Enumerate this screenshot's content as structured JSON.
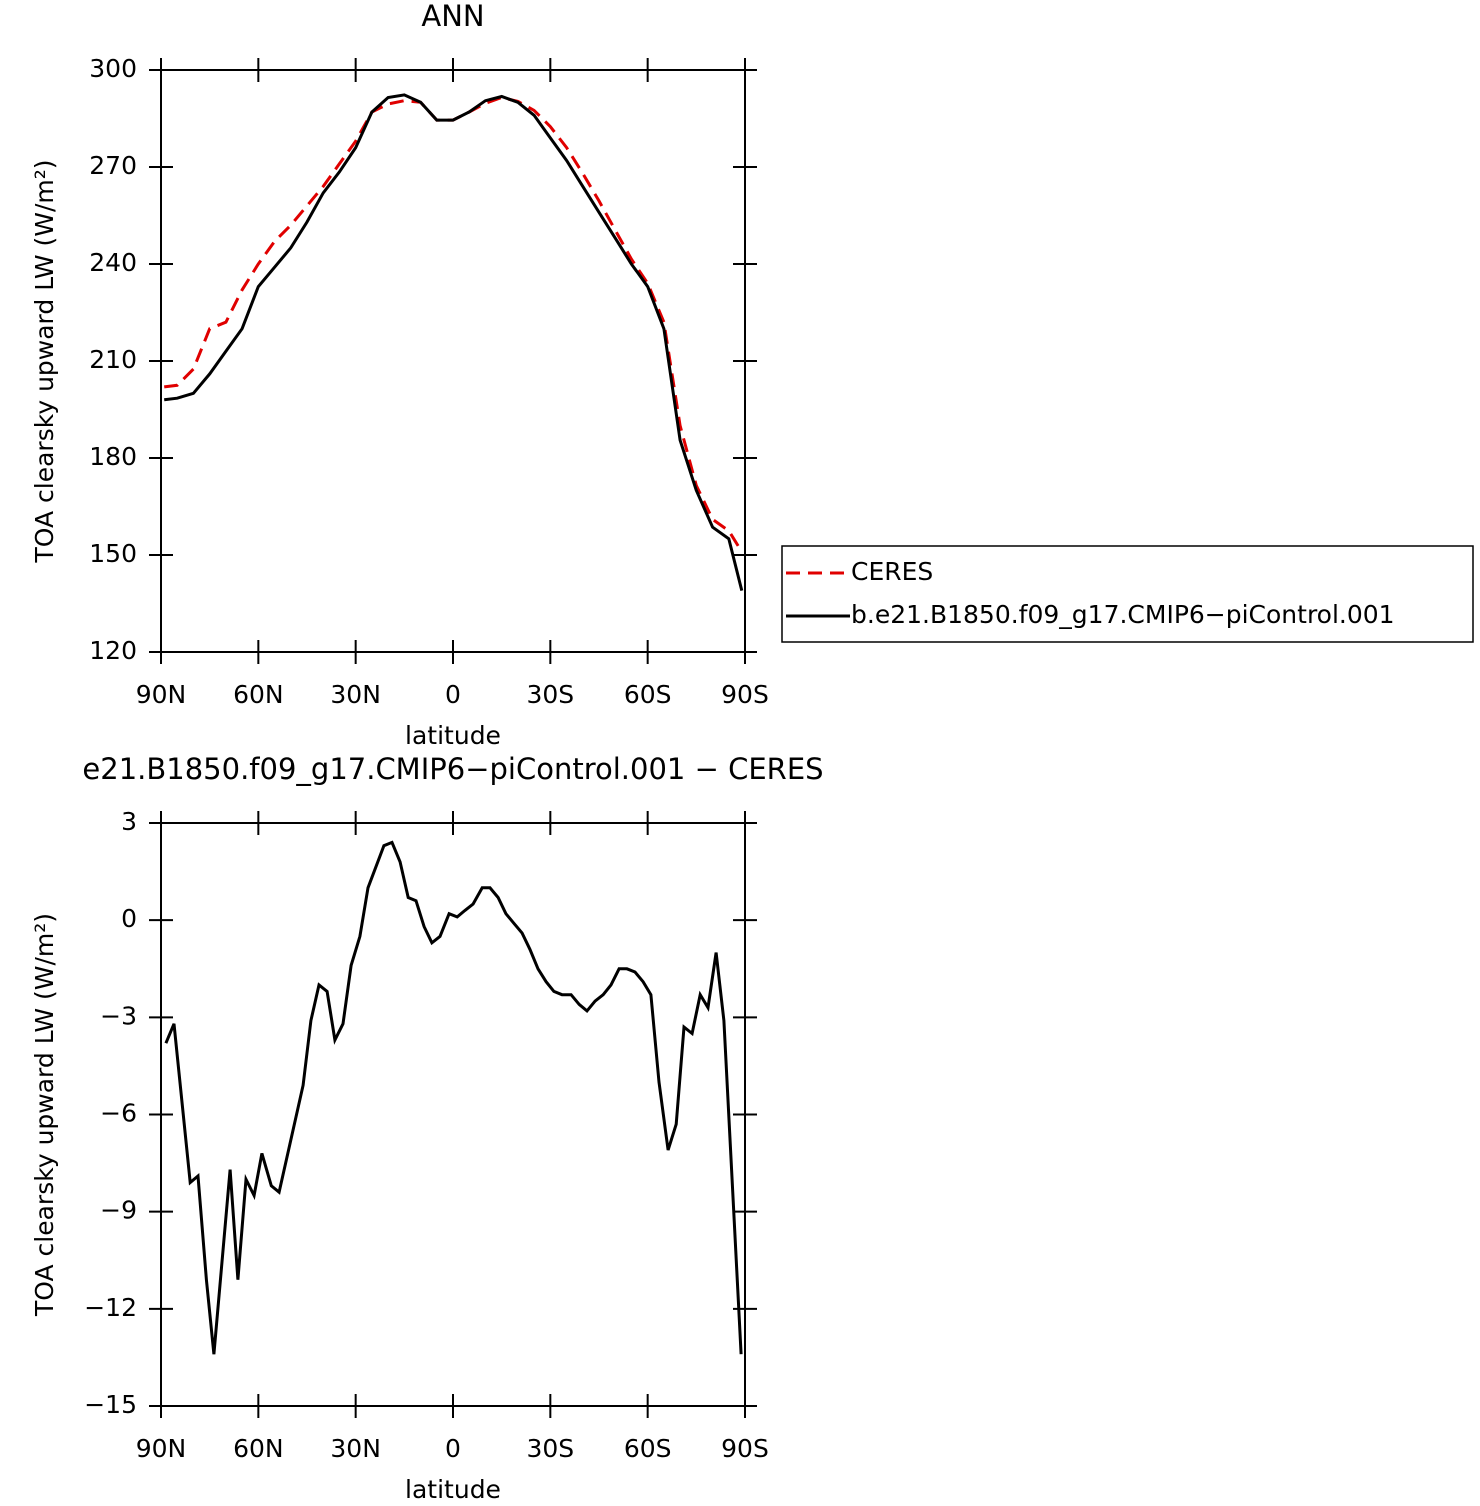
{
  "chart_data": [
    {
      "type": "line",
      "title": "ANN",
      "x_label": "latitude",
      "y_label": "TOA clearsky upward LW (W/m²)",
      "x": [
        89,
        85,
        80,
        75,
        70,
        65,
        60,
        55,
        50,
        45,
        40,
        35,
        30,
        25,
        20,
        15,
        10,
        5,
        0,
        -5,
        -10,
        -15,
        -20,
        -25,
        -30,
        -35,
        -40,
        -45,
        -50,
        -55,
        -60,
        -65,
        -70,
        -75,
        -80,
        -85,
        -89
      ],
      "series": [
        {
          "name": "CERES",
          "color": "#e00000",
          "line_style": "dashed",
          "values": [
            202,
            202.5,
            207.5,
            220,
            222,
            232,
            240,
            247,
            252,
            258,
            264,
            271,
            278,
            287,
            289.5,
            290.5,
            290,
            284.5,
            284.5,
            287,
            289.7,
            291.5,
            290.3,
            287.5,
            282.5,
            276,
            268,
            259.5,
            250.5,
            241.5,
            234,
            222,
            190,
            171.5,
            161,
            157.5,
            151
          ]
        },
        {
          "name": "b.e21.B1850.f09_g17.CMIP6−piControl.001",
          "color": "#000000",
          "line_style": "solid",
          "values": [
            198,
            198.5,
            200,
            206,
            213,
            220,
            233,
            239,
            245,
            253,
            262,
            268.5,
            276,
            287,
            291.5,
            292.3,
            290,
            284.5,
            284.5,
            287,
            290.5,
            291.8,
            290,
            286,
            279,
            272,
            264,
            256,
            248,
            240,
            233,
            220,
            185.5,
            170,
            158.6,
            155,
            139
          ]
        }
      ],
      "xlim": [
        90,
        -90
      ],
      "xticks": [
        {
          "value": 90,
          "label": "90N"
        },
        {
          "value": 60,
          "label": "60N"
        },
        {
          "value": 30,
          "label": "30N"
        },
        0,
        {
          "value": -30,
          "label": "30S"
        },
        {
          "value": -60,
          "label": "60S"
        },
        {
          "value": -90,
          "label": "90S"
        }
      ],
      "ylim": [
        120,
        300
      ],
      "yticks": [
        120,
        150,
        180,
        210,
        240,
        270,
        300
      ],
      "legend": "right"
    },
    {
      "type": "line",
      "title": "e21.B1850.f09_g17.CMIP6−piControl.001 − CERES",
      "x_label": "latitude",
      "y_label": "TOA clearsky upward LW (W/m²)",
      "x": [
        88.5,
        86,
        81,
        78.6,
        76,
        73.7,
        68.7,
        66.3,
        63.8,
        61.3,
        58.9,
        56,
        53.6,
        46.2,
        43.8,
        41.3,
        38.8,
        36.4,
        33.9,
        31.4,
        28.7,
        26.2,
        21.3,
        18.8,
        16.3,
        13.8,
        11.4,
        8.9,
        6.5,
        4,
        1.2,
        -1.3,
        -3.7,
        -6.2,
        -9,
        -11.4,
        -13.9,
        -16.3,
        -18.8,
        -21.3,
        -23.7,
        -26.2,
        -28.7,
        -31.1,
        -33.6,
        -36.4,
        -38.9,
        -41.3,
        -43.8,
        -46.3,
        -48.7,
        -51.2,
        -53.6,
        -56.1,
        -58.6,
        -61,
        -63.5,
        -66.3,
        -68.8,
        -71.2,
        -73.7,
        -76.2,
        -78.6,
        -81.1,
        -83.5,
        -88.8
      ],
      "values": [
        -3.8,
        -3.2,
        -8.1,
        -7.9,
        -11.1,
        -13.4,
        -7.7,
        -11.1,
        -8,
        -8.5,
        -7.2,
        -8.2,
        -8.4,
        -5.1,
        -3.1,
        -2,
        -2.2,
        -3.7,
        -3.2,
        -1.4,
        -0.5,
        1,
        2.3,
        2.4,
        1.8,
        0.7,
        0.6,
        -0.2,
        -0.7,
        -0.5,
        0.2,
        0.1,
        0.3,
        0.5,
        1,
        1,
        0.7,
        0.2,
        -0.1,
        -0.4,
        -0.9,
        -1.5,
        -1.9,
        -2.2,
        -2.3,
        -2.3,
        -2.6,
        -2.8,
        -2.5,
        -2.3,
        -2,
        -1.5,
        -1.5,
        -1.6,
        -1.9,
        -2.3,
        -5,
        -7.1,
        -6.3,
        -3.3,
        -3.5,
        -2.3,
        -2.7,
        -1,
        -3.1,
        -13.4
      ],
      "color": "#000000",
      "xlim": [
        90,
        -90
      ],
      "xticks": [
        {
          "value": 90,
          "label": "90N"
        },
        {
          "value": 60,
          "label": "60N"
        },
        {
          "value": 30,
          "label": "30N"
        },
        0,
        {
          "value": -30,
          "label": "30S"
        },
        {
          "value": -60,
          "label": "60S"
        },
        {
          "value": -90,
          "label": "90S"
        }
      ],
      "ylim": [
        -15,
        3
      ],
      "yticks": [
        {
          "value": -15,
          "label": "−15"
        },
        {
          "value": -12,
          "label": "−12"
        },
        {
          "value": -9,
          "label": "−9"
        },
        {
          "value": -6,
          "label": "−6"
        },
        {
          "value": -3,
          "label": "−3"
        },
        0,
        3
      ]
    }
  ]
}
